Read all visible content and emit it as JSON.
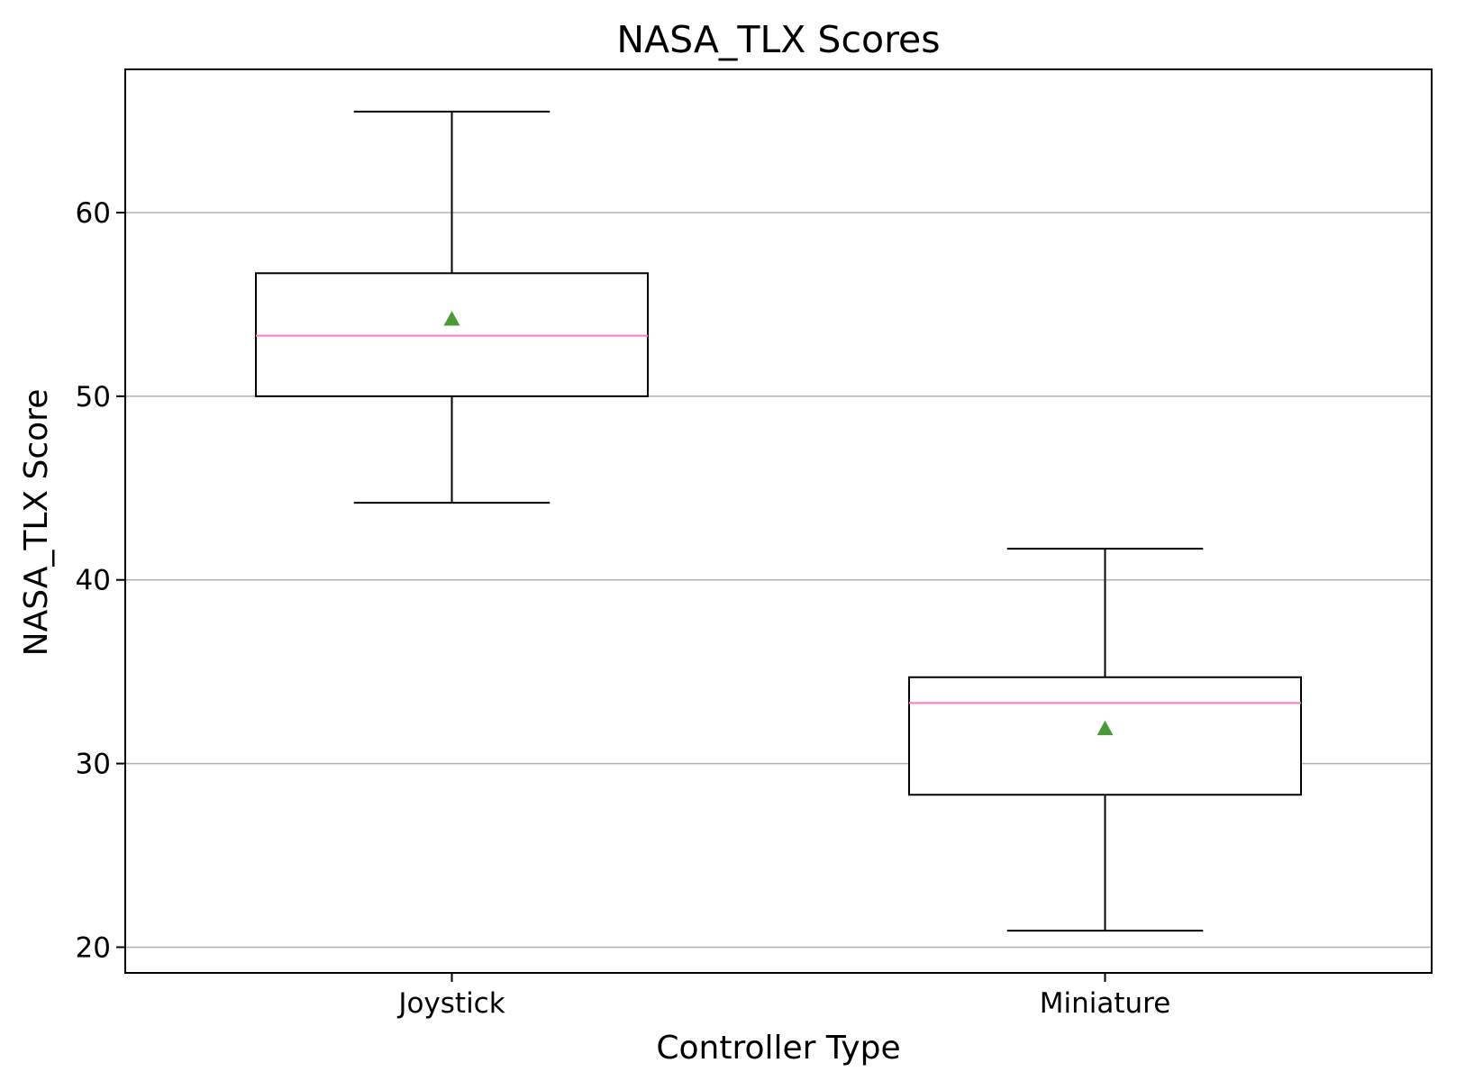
{
  "chart_data": {
    "type": "boxplot",
    "title": "NASA_TLX Scores",
    "xlabel": "Controller Type",
    "ylabel": "NASA_TLX Score",
    "categories": [
      "Joystick",
      "Miniature"
    ],
    "boxes": [
      {
        "category": "Joystick",
        "whisker_low": 44.2,
        "q1": 50.0,
        "median": 53.3,
        "q3": 56.7,
        "whisker_high": 65.5,
        "mean": 54.2
      },
      {
        "category": "Miniature",
        "whisker_low": 20.9,
        "q1": 28.3,
        "median": 33.3,
        "q3": 34.7,
        "whisker_high": 41.7,
        "mean": 31.9
      }
    ],
    "ylim": [
      18.6,
      67.8
    ],
    "yticks": [
      20,
      30,
      40,
      50,
      60
    ],
    "grid": "y",
    "colors": {
      "box": "#000000",
      "median": "#ff77cc",
      "mean": "#4a9a3a",
      "grid": "#b0b0b0"
    }
  }
}
